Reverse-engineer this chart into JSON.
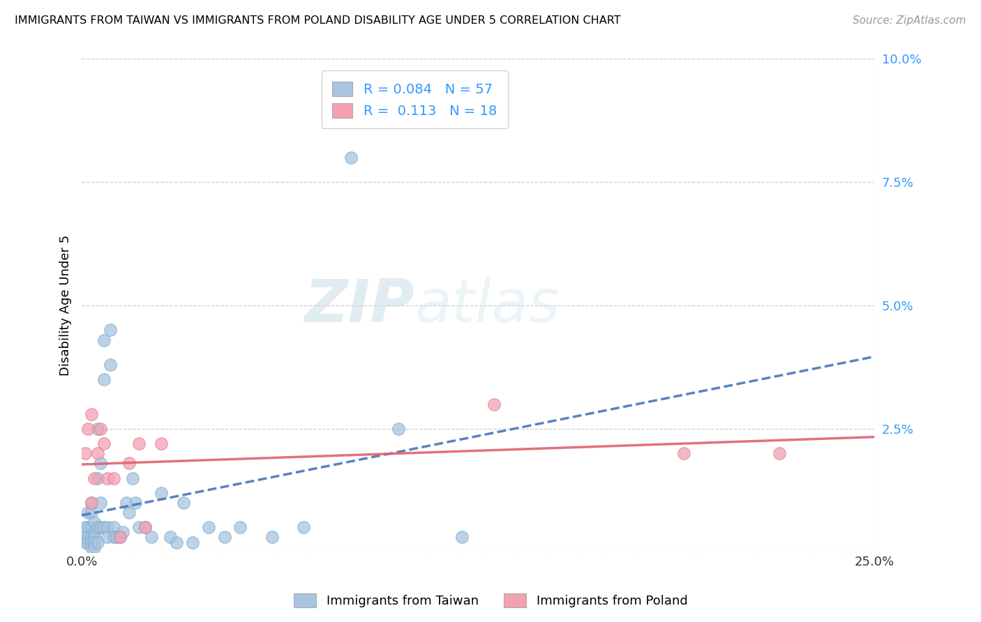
{
  "title": "IMMIGRANTS FROM TAIWAN VS IMMIGRANTS FROM POLAND DISABILITY AGE UNDER 5 CORRELATION CHART",
  "source": "Source: ZipAtlas.com",
  "ylabel": "Disability Age Under 5",
  "xlabel_taiwan": "Immigrants from Taiwan",
  "xlabel_poland": "Immigrants from Poland",
  "xlim": [
    0.0,
    0.25
  ],
  "ylim": [
    0.0,
    0.1
  ],
  "yticks": [
    0.0,
    0.025,
    0.05,
    0.075,
    0.1
  ],
  "ytick_labels": [
    "",
    "2.5%",
    "5.0%",
    "7.5%",
    "10.0%"
  ],
  "xticks": [
    0.0,
    0.25
  ],
  "xtick_labels": [
    "0.0%",
    "25.0%"
  ],
  "taiwan_R": 0.084,
  "taiwan_N": 57,
  "poland_R": 0.113,
  "poland_N": 18,
  "taiwan_color": "#a8c4e0",
  "taiwan_edge_color": "#7aabcc",
  "poland_color": "#f4a0b0",
  "poland_edge_color": "#e07a90",
  "taiwan_line_color": "#4477bb",
  "poland_line_color": "#e06070",
  "watermark_zip": "ZIP",
  "watermark_atlas": "atlas",
  "taiwan_x": [
    0.001,
    0.001,
    0.001,
    0.002,
    0.002,
    0.002,
    0.002,
    0.003,
    0.003,
    0.003,
    0.003,
    0.003,
    0.003,
    0.004,
    0.004,
    0.004,
    0.004,
    0.004,
    0.005,
    0.005,
    0.005,
    0.005,
    0.006,
    0.006,
    0.006,
    0.007,
    0.007,
    0.007,
    0.008,
    0.008,
    0.009,
    0.009,
    0.01,
    0.01,
    0.011,
    0.012,
    0.013,
    0.014,
    0.015,
    0.016,
    0.017,
    0.018,
    0.02,
    0.022,
    0.025,
    0.028,
    0.03,
    0.032,
    0.035,
    0.04,
    0.045,
    0.05,
    0.06,
    0.07,
    0.085,
    0.1,
    0.12
  ],
  "taiwan_y": [
    0.005,
    0.003,
    0.002,
    0.008,
    0.005,
    0.003,
    0.002,
    0.01,
    0.008,
    0.005,
    0.003,
    0.002,
    0.001,
    0.006,
    0.004,
    0.003,
    0.002,
    0.001,
    0.025,
    0.015,
    0.005,
    0.002,
    0.018,
    0.01,
    0.005,
    0.043,
    0.035,
    0.005,
    0.005,
    0.003,
    0.045,
    0.038,
    0.005,
    0.003,
    0.003,
    0.003,
    0.004,
    0.01,
    0.008,
    0.015,
    0.01,
    0.005,
    0.005,
    0.003,
    0.012,
    0.003,
    0.002,
    0.01,
    0.002,
    0.005,
    0.003,
    0.005,
    0.003,
    0.005,
    0.08,
    0.025,
    0.003
  ],
  "poland_x": [
    0.001,
    0.002,
    0.003,
    0.003,
    0.004,
    0.005,
    0.006,
    0.007,
    0.008,
    0.01,
    0.012,
    0.015,
    0.018,
    0.02,
    0.025,
    0.13,
    0.19,
    0.22
  ],
  "poland_y": [
    0.02,
    0.025,
    0.01,
    0.028,
    0.015,
    0.02,
    0.025,
    0.022,
    0.015,
    0.015,
    0.003,
    0.018,
    0.022,
    0.005,
    0.022,
    0.03,
    0.02,
    0.02
  ]
}
